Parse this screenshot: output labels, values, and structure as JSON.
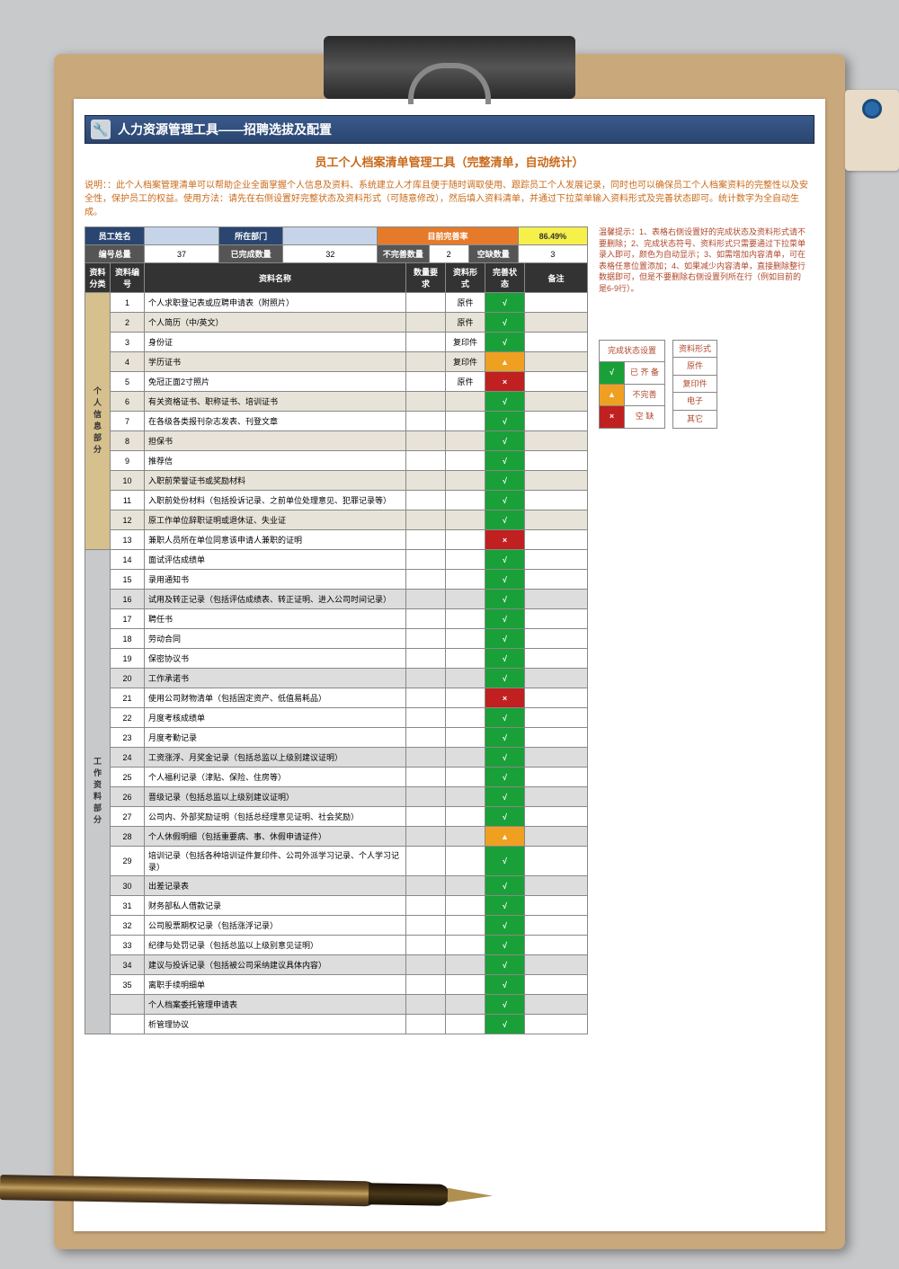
{
  "header": {
    "title": "人力资源管理工具——招聘选拔及配置"
  },
  "subtitle": "员工个人档案清单管理工具（完整清单，自动统计）",
  "description": "说明：：此个人档案管理清单可以帮助企业全面掌握个人信息及资料、系统建立人才库且便于随时调取使用、跟踪员工个人发展记录，同时也可以确保员工个人档案资料的完整性以及安全性，保护员工的权益。使用方法：请先在右侧设置好完整状态及资料形式（可随意修改），然后填入资料清单，并通过下拉菜单输入资料形式及完善状态即可。统计数字为全自动生成。",
  "tip": "温馨提示：1、表格右侧设置好的完成状态及资料形式请不要删除；2、完成状态符号、资料形式只需要通过下拉菜单录入即可，颜色为自动显示；3、如需增加内容清单，可在表格任意位置添加；4、如果减少内容清单，直接删除整行数据即可，但是不要删除右侧设置列所在行（例如目前的是6-9行）。",
  "summary": {
    "labels": {
      "name": "员工姓名",
      "dept": "所在部门",
      "rate": "目前完善率",
      "total": "编号总量",
      "done": "已完成数量",
      "incomplete": "不完善数量",
      "empty": "空缺数量"
    },
    "values": {
      "rate": "86.49%",
      "total": "37",
      "done": "32",
      "incomplete": "2",
      "empty": "3"
    }
  },
  "cols": {
    "cat": "资料分类",
    "num": "资料编号",
    "name": "资料名称",
    "qty": "数量要求",
    "form": "资料形式",
    "status": "完善状态",
    "note": "备注"
  },
  "cat1": "个人信息部分",
  "cat2": "工作资料部分",
  "legend": {
    "h1": "完成状态设置",
    "h2": "资料形式",
    "s": [
      {
        "sym": "√",
        "txt": "已 齐 备",
        "cls": "s-green"
      },
      {
        "sym": "▲",
        "txt": "不完善",
        "cls": "s-orange"
      },
      {
        "sym": "×",
        "txt": "空 缺",
        "cls": "s-red"
      }
    ],
    "f": [
      "原件",
      "复印件",
      "电子",
      "其它"
    ]
  },
  "rows1": [
    {
      "n": "1",
      "name": "个人求职登记表或应聘申请表（附照片）",
      "form": "原件",
      "s": "√",
      "sc": "s-green",
      "alt": 0
    },
    {
      "n": "2",
      "name": "个人简历（中/英文）",
      "form": "原件",
      "s": "√",
      "sc": "s-green",
      "alt": 1
    },
    {
      "n": "3",
      "name": "身份证",
      "form": "复印件",
      "s": "√",
      "sc": "s-green",
      "alt": 0
    },
    {
      "n": "4",
      "name": "学历证书",
      "form": "复印件",
      "s": "▲",
      "sc": "s-orange",
      "alt": 1
    },
    {
      "n": "5",
      "name": "免冠正面2寸照片",
      "form": "原件",
      "s": "×",
      "sc": "s-red",
      "alt": 0
    },
    {
      "n": "6",
      "name": "有关资格证书、职称证书、培训证书",
      "form": "",
      "s": "√",
      "sc": "s-green",
      "alt": 1
    },
    {
      "n": "7",
      "name": "在各级各类报刊杂志发表、刊登文章",
      "form": "",
      "s": "√",
      "sc": "s-green",
      "alt": 0
    },
    {
      "n": "8",
      "name": "担保书",
      "form": "",
      "s": "√",
      "sc": "s-green",
      "alt": 1
    },
    {
      "n": "9",
      "name": "推荐信",
      "form": "",
      "s": "√",
      "sc": "s-green",
      "alt": 0
    },
    {
      "n": "10",
      "name": "入职前荣誉证书或奖励材料",
      "form": "",
      "s": "√",
      "sc": "s-green",
      "alt": 1
    },
    {
      "n": "11",
      "name": "入职前处份材料（包括投诉记录、之前单位处理意见、犯罪记录等）",
      "form": "",
      "s": "√",
      "sc": "s-green",
      "alt": 0
    },
    {
      "n": "12",
      "name": "原工作单位辞职证明或退休证、失业证",
      "form": "",
      "s": "√",
      "sc": "s-green",
      "alt": 1
    },
    {
      "n": "13",
      "name": "兼职人员所在单位同意该申请人兼职的证明",
      "form": "",
      "s": "×",
      "sc": "s-red",
      "alt": 0
    }
  ],
  "rows2": [
    {
      "n": "14",
      "name": "面试评估成绩单",
      "s": "√",
      "sc": "s-green",
      "alt": 0
    },
    {
      "n": "15",
      "name": "录用通知书",
      "s": "√",
      "sc": "s-green",
      "alt": 0
    },
    {
      "n": "16",
      "name": "试用及转正记录（包括评估成绩表、转正证明、进入公司时间记录）",
      "s": "√",
      "sc": "s-green",
      "alt": 1
    },
    {
      "n": "17",
      "name": "聘任书",
      "s": "√",
      "sc": "s-green",
      "alt": 0
    },
    {
      "n": "18",
      "name": "劳动合同",
      "s": "√",
      "sc": "s-green",
      "alt": 0
    },
    {
      "n": "19",
      "name": "保密协议书",
      "s": "√",
      "sc": "s-green",
      "alt": 0
    },
    {
      "n": "20",
      "name": "工作承诺书",
      "s": "√",
      "sc": "s-green",
      "alt": 1
    },
    {
      "n": "21",
      "name": "使用公司财物清单（包括固定资产、低值易耗品）",
      "s": "×",
      "sc": "s-red",
      "alt": 0
    },
    {
      "n": "22",
      "name": "月度考核成绩单",
      "s": "√",
      "sc": "s-green",
      "alt": 0
    },
    {
      "n": "23",
      "name": "月度考勤记录",
      "s": "√",
      "sc": "s-green",
      "alt": 0
    },
    {
      "n": "24",
      "name": "工资涨浮、月奖金记录（包括总监以上级别建议证明）",
      "s": "√",
      "sc": "s-green",
      "alt": 1
    },
    {
      "n": "25",
      "name": "个人福利记录（津贴、保险、住房等）",
      "s": "√",
      "sc": "s-green",
      "alt": 0
    },
    {
      "n": "26",
      "name": "晋级记录（包括总监以上级别建议证明）",
      "s": "√",
      "sc": "s-green",
      "alt": 1
    },
    {
      "n": "27",
      "name": "公司内、外部奖励证明（包括总经理意见证明、社会奖励）",
      "s": "√",
      "sc": "s-green",
      "alt": 0
    },
    {
      "n": "28",
      "name": "个人休假明细（包括重要病、事、休假申请证件）",
      "s": "▲",
      "sc": "s-orange",
      "alt": 1
    },
    {
      "n": "29",
      "name": "培训记录（包括各种培训证件复印件、公司外派学习记录、个人学习记录）",
      "s": "√",
      "sc": "s-green",
      "alt": 0
    },
    {
      "n": "30",
      "name": "出差记录表",
      "s": "√",
      "sc": "s-green",
      "alt": 1
    },
    {
      "n": "31",
      "name": "财务部私人借款记录",
      "s": "√",
      "sc": "s-green",
      "alt": 0
    },
    {
      "n": "32",
      "name": "公司股票期权记录（包括涨浮记录）",
      "s": "√",
      "sc": "s-green",
      "alt": 0
    },
    {
      "n": "33",
      "name": "纪律与处罚记录（包括总监以上级别意见证明）",
      "s": "√",
      "sc": "s-green",
      "alt": 0
    },
    {
      "n": "34",
      "name": "建议与投诉记录（包括被公司采纳建议具体内容）",
      "s": "√",
      "sc": "s-green",
      "alt": 1
    },
    {
      "n": "35",
      "name": "离职手续明细单",
      "s": "√",
      "sc": "s-green",
      "alt": 0
    },
    {
      "n": "",
      "name": "个人档案委托管理申请表",
      "s": "√",
      "sc": "s-green",
      "alt": 1
    },
    {
      "n": "",
      "name": "析管理协议",
      "s": "√",
      "sc": "s-green",
      "alt": 0
    }
  ]
}
